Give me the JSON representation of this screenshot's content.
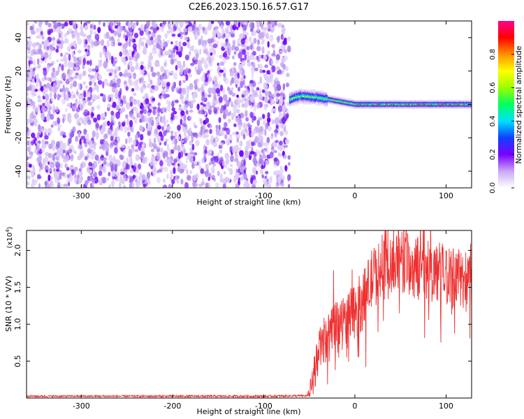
{
  "title": "C2E6.2023.150.16.57.G17",
  "chart_data": [
    {
      "type": "heatmap",
      "xlabel": "Height of straight line (km)",
      "ylabel": "Frequency (Hz)",
      "xlim": [
        -360,
        128
      ],
      "ylim": [
        -50,
        50
      ],
      "x_ticks": [
        "-300",
        "-200",
        "-100",
        "0",
        "100"
      ],
      "x_tick_values": [
        -300,
        -200,
        -100,
        0,
        100
      ],
      "y_ticks": [
        "40",
        "20",
        "0",
        "-20",
        "-40"
      ],
      "y_tick_values": [
        40,
        20,
        0,
        -20,
        -40
      ],
      "colorbar": {
        "label": "Normalized spectral amplitude",
        "range": [
          0,
          1
        ],
        "ticks": [
          "0.0",
          "0.2",
          "0.4",
          "0.6",
          "0.8"
        ],
        "tick_values": [
          0,
          0.2,
          0.4,
          0.6,
          0.8
        ],
        "colors": [
          "#ffffff",
          "#c9a6f5",
          "#7a00ff",
          "#1040ff",
          "#00e0ff",
          "#00ff60",
          "#9aff00",
          "#ffff00",
          "#ff9000",
          "#ff0000",
          "#ff0090"
        ]
      },
      "noise_region": {
        "x_from": -360,
        "x_to": -72,
        "freq_from": -50,
        "freq_to": 50
      },
      "signal_trace": {
        "x_from": -72,
        "x_to": 128,
        "freq": [
          [
            -72,
            3
          ],
          [
            -60,
            5
          ],
          [
            -40,
            4
          ],
          [
            -20,
            2
          ],
          [
            0,
            0
          ],
          [
            50,
            0
          ],
          [
            128,
            0
          ]
        ]
      }
    },
    {
      "type": "line",
      "xlabel": "Height of straight line (km)",
      "ylabel": "SNR (10 * V/V)",
      "y_multiplier": "(x10",
      "y_multiplier_exp": "4",
      "y_multiplier_close": ")",
      "xlim": [
        -360,
        128
      ],
      "ylim": [
        0,
        22700
      ],
      "x_ticks": [
        "-300",
        "-200",
        "-100",
        "0",
        "100"
      ],
      "x_tick_values": [
        -300,
        -200,
        -100,
        0,
        100
      ],
      "y_ticks": [
        "2.0",
        "1.5",
        "1.0",
        "0.5"
      ],
      "y_tick_values": [
        20000,
        15000,
        10000,
        5000
      ],
      "series_color": "#ee3030",
      "series": [
        {
          "name": "",
          "points": [
            [
              -360,
              250
            ],
            [
              -100,
              250
            ],
            [
              -52,
              300
            ],
            [
              -47,
              1800
            ],
            [
              -42,
              5200
            ],
            [
              -36,
              7500
            ],
            [
              -30,
              8000
            ],
            [
              -22,
              9000
            ],
            [
              -15,
              10200
            ],
            [
              -8,
              10500
            ],
            [
              0,
              11800
            ],
            [
              10,
              13500
            ],
            [
              20,
              16500
            ],
            [
              35,
              17500
            ],
            [
              55,
              18200
            ],
            [
              75,
              17200
            ],
            [
              95,
              17000
            ],
            [
              110,
              16300
            ],
            [
              128,
              16000
            ]
          ],
          "noise_amplitude": [
            [
              -360,
              120
            ],
            [
              -52,
              150
            ],
            [
              -45,
              2500
            ],
            [
              -30,
              3500
            ],
            [
              0,
              4000
            ],
            [
              50,
              4500
            ],
            [
              128,
              4000
            ]
          ]
        }
      ]
    }
  ]
}
